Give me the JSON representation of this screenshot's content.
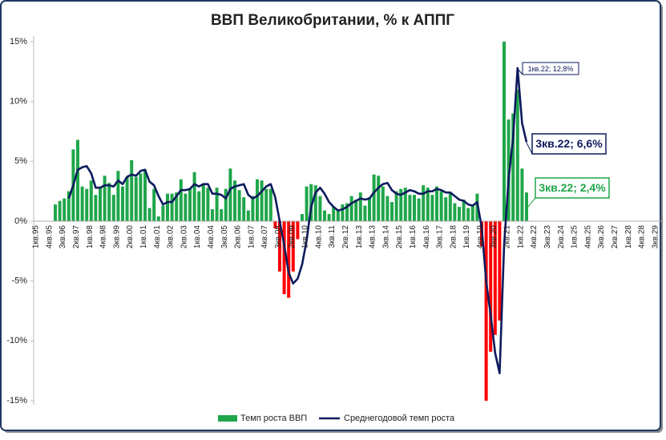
{
  "chart_data": {
    "type": "bar-line",
    "title": "ВВП Великобритании, % к АППГ",
    "categories": [
      "1кв.95",
      null,
      null,
      "4кв.95",
      null,
      null,
      "3кв.96",
      null,
      null,
      "2кв.97",
      null,
      null,
      "1кв.98",
      null,
      null,
      "4кв.98",
      null,
      null,
      "3кв.99",
      null,
      null,
      "2кв.00",
      null,
      null,
      "1кв.01",
      null,
      null,
      "4кв.01",
      null,
      null,
      "3кв.02",
      null,
      null,
      "2кв.03",
      null,
      null,
      "1кв.04",
      null,
      null,
      "4кв.04",
      null,
      null,
      "3кв.05",
      null,
      null,
      "2кв.06",
      null,
      null,
      "1кв.07",
      null,
      null,
      "4кв.07",
      null,
      null,
      "3кв.08",
      null,
      null,
      "2кв.09",
      null,
      null,
      "1кв.10",
      null,
      null,
      "4кв.10",
      null,
      null,
      "3кв.11",
      null,
      null,
      "2кв.12",
      null,
      null,
      "1кв.13",
      null,
      null,
      "4кв.13",
      null,
      null,
      "3кв.14",
      null,
      null,
      "2кв.15",
      null,
      null,
      "1кв.16",
      null,
      null,
      "4кв.16",
      null,
      null,
      "3кв.17",
      null,
      null,
      "2кв.18",
      null,
      null,
      "1кв.19",
      null,
      null,
      "4кв.19",
      null,
      null,
      "3кв.20",
      null,
      null,
      "2кв.21",
      null,
      null,
      "1кв.22",
      null,
      null,
      "4кв.22",
      null,
      null,
      "3кв.23",
      null,
      null,
      "2кв.24",
      null,
      null,
      "1кв.25",
      null,
      null,
      "4кв.25",
      null,
      null,
      "3кв.26",
      null,
      null,
      "2кв.27",
      null,
      null,
      "1кв.28",
      null,
      null,
      "4кв.28",
      null,
      null,
      "3кв.29"
    ],
    "series": [
      {
        "name": "Темп роста ВВП",
        "kind": "bar",
        "color": "#1fa64a",
        "negative_color": "#ff0000",
        "values": [
          null,
          null,
          null,
          null,
          null,
          1.4,
          1.7,
          1.9,
          2.5,
          6.0,
          6.8,
          2.9,
          2.7,
          3.4,
          2.2,
          2.8,
          3.8,
          3.2,
          2.2,
          4.2,
          2.9,
          3.7,
          5.1,
          3.7,
          4.0,
          4.3,
          1.1,
          2.7,
          0.4,
          1.3,
          2.3,
          2.3,
          2.4,
          3.5,
          2.3,
          2.7,
          4.1,
          2.5,
          3.1,
          2.8,
          1.0,
          2.8,
          1.0,
          2.7,
          4.4,
          3.4,
          2.6,
          2.0,
          0.9,
          2.1,
          3.5,
          3.4,
          2.7,
          2.7,
          -0.6,
          -4.2,
          -6.1,
          -6.4,
          -4.2,
          -1.5,
          0.6,
          2.9,
          3.1,
          3.0,
          2.1,
          0.9,
          0.6,
          1.2,
          0.9,
          1.4,
          1.5,
          2.1,
          1.8,
          2.4,
          1.3,
          2.0,
          3.9,
          3.8,
          2.9,
          2.1,
          1.6,
          2.5,
          2.7,
          2.8,
          2.2,
          2.2,
          1.9,
          3.0,
          2.8,
          2.2,
          2.9,
          2.5,
          2.0,
          2.4,
          1.5,
          1.2,
          1.8,
          1.1,
          1.3,
          2.3,
          -2.1,
          -15,
          -10.9,
          -9.5,
          -8.3,
          15,
          8.5,
          9.0,
          11.0,
          4.4,
          2.4,
          null,
          null,
          null,
          null,
          null,
          null,
          null,
          null,
          null,
          null,
          null,
          null,
          null,
          null,
          null,
          null,
          null,
          null,
          null,
          null,
          null,
          null,
          null,
          null,
          null,
          null,
          null,
          null
        ]
      },
      {
        "name": "Среднегодовой темп роста",
        "kind": "line",
        "color": "#0d1b5e",
        "values": [
          null,
          null,
          null,
          null,
          null,
          null,
          null,
          null,
          1.9,
          3.0,
          4.3,
          4.5,
          4.6,
          4.0,
          2.8,
          2.8,
          3.0,
          3.0,
          2.9,
          3.4,
          3.1,
          3.7,
          3.9,
          3.8,
          4.2,
          4.3,
          3.3,
          3.0,
          2.1,
          1.4,
          1.6,
          1.6,
          2.1,
          2.6,
          2.6,
          2.7,
          3.1,
          2.9,
          3.1,
          3.1,
          2.3,
          2.3,
          2.2,
          1.9,
          2.7,
          2.9,
          3.0,
          3.1,
          2.2,
          1.9,
          2.1,
          2.5,
          2.9,
          3.1,
          2.0,
          0.0,
          -2.0,
          -4.3,
          -5.2,
          -4.8,
          -3.6,
          -1.6,
          1.2,
          2.4,
          2.8,
          2.3,
          1.6,
          1.2,
          0.9,
          1.0,
          1.2,
          1.5,
          1.7,
          1.9,
          1.8,
          1.9,
          2.4,
          2.8,
          3.1,
          3.2,
          2.6,
          2.3,
          2.2,
          2.4,
          2.6,
          2.5,
          2.3,
          2.3,
          2.5,
          2.5,
          2.7,
          2.6,
          2.4,
          2.4,
          2.1,
          1.8,
          1.7,
          1.4,
          1.3,
          1.6,
          -0.5,
          -5.0,
          -7.8,
          -11.0,
          -12.7,
          -2.0,
          3.5,
          7.0,
          12.8,
          8.2,
          6.6,
          null,
          null,
          null,
          null,
          null,
          null,
          null,
          null,
          null,
          null,
          null,
          null,
          null,
          null,
          null,
          null,
          null,
          null,
          null,
          null,
          null,
          null,
          null,
          null,
          null,
          null,
          null,
          null
        ]
      }
    ],
    "annotations": [
      {
        "text": "1кв.22; 12,8%"
      },
      {
        "text": "3кв.22; 6,6%"
      },
      {
        "text": "3кв.22; 2,4%"
      }
    ],
    "ylim": [
      -15,
      15
    ],
    "yticks": [
      {
        "value": 15,
        "label": "15%"
      },
      {
        "value": 10,
        "label": "10%"
      },
      {
        "value": 5,
        "label": "5%"
      },
      {
        "value": 0,
        "label": "0%"
      },
      {
        "value": -5,
        "label": "-5%"
      },
      {
        "value": -10,
        "label": "-10%"
      },
      {
        "value": -15,
        "label": "-15%"
      }
    ],
    "grid": false,
    "legend": "bottom"
  }
}
